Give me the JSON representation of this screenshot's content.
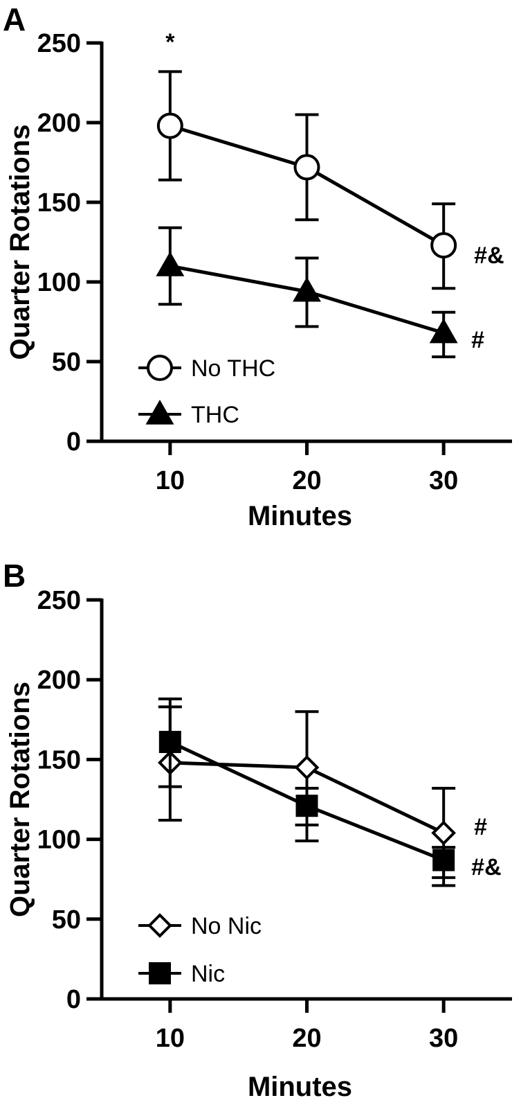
{
  "chart_data": [
    {
      "panel": "A",
      "type": "line",
      "xlabel": "Minutes",
      "ylabel": "Quarter Rotations",
      "x": [
        10,
        20,
        30
      ],
      "xlim": [
        5,
        35
      ],
      "ylim": [
        0,
        250
      ],
      "yticks": [
        0,
        50,
        100,
        150,
        200,
        250
      ],
      "xticks": [
        10,
        20,
        30
      ],
      "legend_position": "bottom-left",
      "series": [
        {
          "name": "No THC",
          "marker": "open-circle",
          "values": [
            198,
            172,
            123
          ],
          "err_upper": [
            232,
            205,
            149
          ],
          "err_lower": [
            164,
            139,
            96
          ]
        },
        {
          "name": "THC",
          "marker": "filled-triangle",
          "values": [
            110,
            94,
            68
          ],
          "err_upper": [
            134,
            115,
            81
          ],
          "err_lower": [
            86,
            72,
            53
          ]
        }
      ],
      "annotations": [
        {
          "text": "*",
          "x": 10,
          "y": 243
        },
        {
          "text": "#&",
          "x": 30,
          "y": 117
        },
        {
          "text": "#",
          "x": 30,
          "y": 64
        }
      ]
    },
    {
      "panel": "B",
      "type": "line",
      "xlabel": "Minutes",
      "ylabel": "Quarter Rotations",
      "x": [
        10,
        20,
        30
      ],
      "xlim": [
        5,
        35
      ],
      "ylim": [
        0,
        250
      ],
      "yticks": [
        0,
        50,
        100,
        150,
        200,
        250
      ],
      "xticks": [
        10,
        20,
        30
      ],
      "legend_position": "bottom-left",
      "series": [
        {
          "name": "No Nic",
          "marker": "open-diamond",
          "values": [
            148,
            145,
            104
          ],
          "err_upper": [
            183,
            180,
            132
          ],
          "err_lower": [
            112,
            109,
            76
          ]
        },
        {
          "name": "Nic",
          "marker": "filled-square",
          "values": [
            161,
            121,
            87
          ],
          "err_upper": [
            188,
            132,
            95
          ],
          "err_lower": [
            133,
            99,
            71
          ]
        }
      ],
      "annotations": [
        {
          "text": "#",
          "x": 30,
          "y": 108
        },
        {
          "text": "#&",
          "x": 30,
          "y": 83
        }
      ]
    }
  ]
}
